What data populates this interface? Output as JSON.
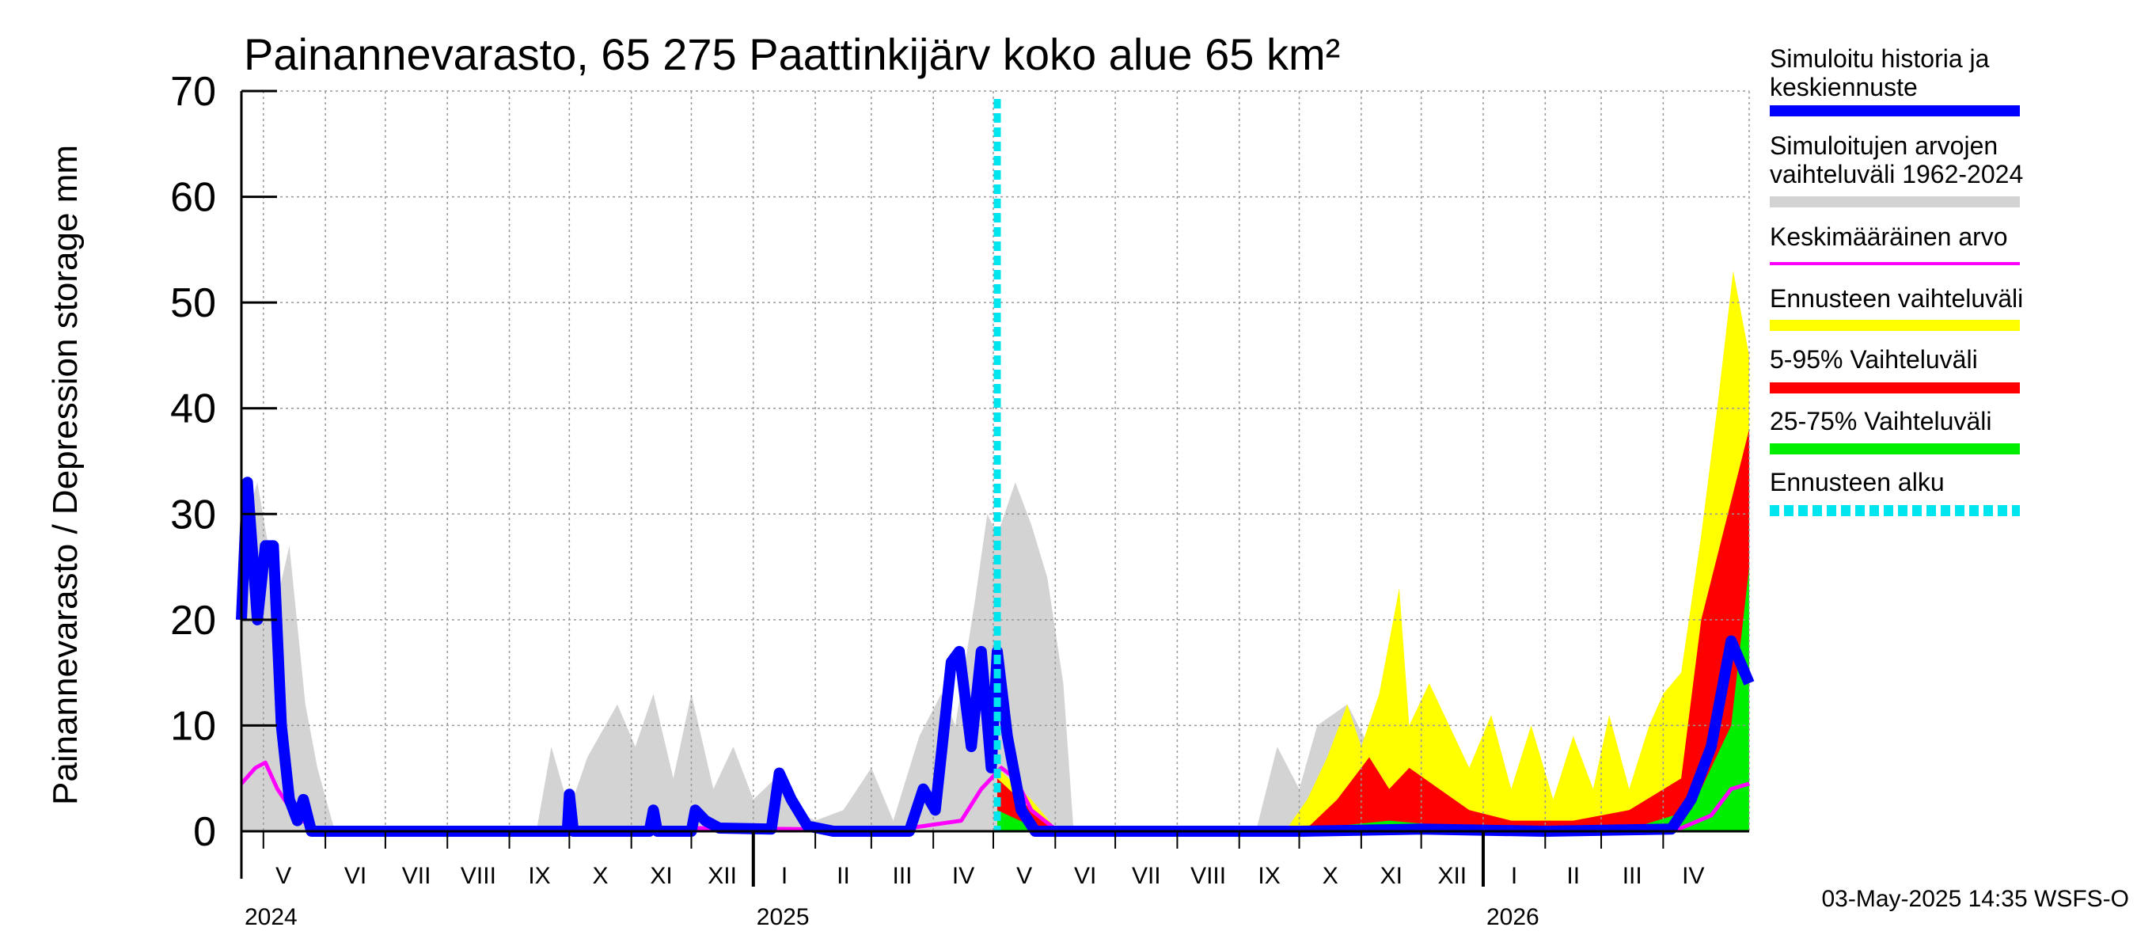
{
  "chart_data": {
    "type": "area",
    "title": "Painannevarasto, 65 275 Paattinkijärv koko alue 65 km²",
    "ylabel": "Painannevarasto / Depression storage    mm",
    "ylim": [
      0,
      70
    ],
    "yticks": [
      0,
      10,
      20,
      30,
      40,
      50,
      60,
      70
    ],
    "x_range": [
      "2024-04-20",
      "2026-05-14"
    ],
    "grid": true,
    "legend_position": "right",
    "months": [
      {
        "label": "V",
        "date": "2024-05-01"
      },
      {
        "label": "VI",
        "date": "2024-06-01"
      },
      {
        "label": "VII",
        "date": "2024-07-01"
      },
      {
        "label": "VIII",
        "date": "2024-08-01"
      },
      {
        "label": "IX",
        "date": "2024-09-01"
      },
      {
        "label": "X",
        "date": "2024-10-01"
      },
      {
        "label": "XI",
        "date": "2024-11-01"
      },
      {
        "label": "XII",
        "date": "2024-12-01"
      },
      {
        "label": "I",
        "date": "2025-01-01"
      },
      {
        "label": "II",
        "date": "2025-02-01"
      },
      {
        "label": "III",
        "date": "2025-03-01"
      },
      {
        "label": "IV",
        "date": "2025-04-01"
      },
      {
        "label": "V",
        "date": "2025-05-01"
      },
      {
        "label": "VI",
        "date": "2025-06-01"
      },
      {
        "label": "VII",
        "date": "2025-07-01"
      },
      {
        "label": "VIII",
        "date": "2025-08-01"
      },
      {
        "label": "IX",
        "date": "2025-09-01"
      },
      {
        "label": "X",
        "date": "2025-10-01"
      },
      {
        "label": "XI",
        "date": "2025-11-01"
      },
      {
        "label": "XII",
        "date": "2025-12-01"
      },
      {
        "label": "I",
        "date": "2026-01-01"
      },
      {
        "label": "II",
        "date": "2026-02-01"
      },
      {
        "label": "III",
        "date": "2026-03-01"
      },
      {
        "label": "IV",
        "date": "2026-04-01"
      }
    ],
    "years": [
      {
        "label": "2024",
        "date": "2024-05-01"
      },
      {
        "label": "2025",
        "date": "2025-01-01"
      },
      {
        "label": "2026",
        "date": "2026-01-01"
      }
    ],
    "forecast_start": "2025-05-03",
    "series": [
      {
        "name": "Simuloitujen arvojen vaihteluväli 1962-2024",
        "color": "#d3d3d3",
        "kind": "band",
        "points": [
          [
            "2024-04-20",
            0,
            28
          ],
          [
            "2024-04-28",
            0,
            33
          ],
          [
            "2024-05-08",
            0,
            22
          ],
          [
            "2024-05-14",
            0,
            27
          ],
          [
            "2024-05-22",
            0,
            12
          ],
          [
            "2024-05-28",
            0,
            6
          ],
          [
            "2024-06-05",
            0,
            0.5
          ],
          [
            "2024-09-15",
            0,
            0.5
          ],
          [
            "2024-09-22",
            0,
            8
          ],
          [
            "2024-10-01",
            0,
            2
          ],
          [
            "2024-10-10",
            0,
            7
          ],
          [
            "2024-10-25",
            0,
            12
          ],
          [
            "2024-11-03",
            0,
            8
          ],
          [
            "2024-11-12",
            0,
            13
          ],
          [
            "2024-11-22",
            0,
            5
          ],
          [
            "2024-12-01",
            0,
            13
          ],
          [
            "2024-12-12",
            0,
            4
          ],
          [
            "2024-12-22",
            0,
            8
          ],
          [
            "2025-01-01",
            0,
            3
          ],
          [
            "2025-01-12",
            0,
            5
          ],
          [
            "2025-01-22",
            0,
            2
          ],
          [
            "2025-02-01",
            0,
            1
          ],
          [
            "2025-02-15",
            0,
            2
          ],
          [
            "2025-03-01",
            0,
            6
          ],
          [
            "2025-03-12",
            0,
            1
          ],
          [
            "2025-03-25",
            0,
            9
          ],
          [
            "2025-04-05",
            0,
            13
          ],
          [
            "2025-04-12",
            0,
            10
          ],
          [
            "2025-04-22",
            0,
            22
          ],
          [
            "2025-04-28",
            0,
            30
          ],
          [
            "2025-05-03",
            0,
            28
          ],
          [
            "2025-05-12",
            0,
            33
          ],
          [
            "2025-05-20",
            0,
            29
          ],
          [
            "2025-05-28",
            0,
            24
          ],
          [
            "2025-06-05",
            0,
            14
          ],
          [
            "2025-06-10",
            0,
            0.5
          ],
          [
            "2025-09-10",
            0,
            0.5
          ],
          [
            "2025-09-20",
            0,
            8
          ],
          [
            "2025-10-01",
            0,
            4
          ],
          [
            "2025-10-10",
            0,
            10
          ],
          [
            "2025-10-25",
            0,
            12
          ],
          [
            "2025-11-05",
            0,
            8
          ],
          [
            "2025-11-15",
            0,
            13
          ],
          [
            "2025-11-28",
            0,
            5
          ],
          [
            "2025-12-10",
            0,
            9
          ],
          [
            "2025-12-22",
            0,
            3
          ],
          [
            "2026-01-15",
            0,
            1
          ],
          [
            "2026-02-15",
            0,
            0.5
          ],
          [
            "2026-03-15",
            0,
            1
          ],
          [
            "2026-04-10",
            0,
            8
          ],
          [
            "2026-04-20",
            0,
            18
          ],
          [
            "2026-04-30",
            0,
            30
          ],
          [
            "2026-05-08",
            0,
            25
          ],
          [
            "2026-05-14",
            0,
            20
          ]
        ]
      },
      {
        "name": "Ennusteen vaihteluväli",
        "color": "#ffff00",
        "kind": "band",
        "points": [
          [
            "2025-05-03",
            0,
            6
          ],
          [
            "2025-05-20",
            0,
            3
          ],
          [
            "2025-06-01",
            0,
            0.3
          ],
          [
            "2025-09-25",
            0,
            0.3
          ],
          [
            "2025-10-05",
            0,
            3
          ],
          [
            "2025-10-15",
            0,
            7
          ],
          [
            "2025-10-25",
            0,
            12
          ],
          [
            "2025-11-01",
            0,
            8
          ],
          [
            "2025-11-10",
            0,
            13
          ],
          [
            "2025-11-20",
            0,
            23
          ],
          [
            "2025-11-25",
            0,
            10
          ],
          [
            "2025-12-05",
            0,
            14
          ],
          [
            "2025-12-15",
            0,
            10
          ],
          [
            "2025-12-25",
            0,
            6
          ],
          [
            "2026-01-05",
            0,
            11
          ],
          [
            "2026-01-15",
            0,
            4
          ],
          [
            "2026-01-25",
            0,
            10
          ],
          [
            "2026-02-05",
            0,
            3
          ],
          [
            "2026-02-15",
            0,
            9
          ],
          [
            "2026-02-25",
            0,
            4
          ],
          [
            "2026-03-05",
            0,
            11
          ],
          [
            "2026-03-15",
            0,
            4
          ],
          [
            "2026-03-25",
            0,
            10
          ],
          [
            "2026-04-01",
            0,
            13
          ],
          [
            "2026-04-10",
            0,
            15
          ],
          [
            "2026-04-20",
            0,
            28
          ],
          [
            "2026-04-28",
            0,
            40
          ],
          [
            "2026-05-06",
            0,
            53
          ],
          [
            "2026-05-14",
            0,
            45
          ]
        ]
      },
      {
        "name": "5-95% Vaihteluväli",
        "color": "#ff0000",
        "kind": "band",
        "points": [
          [
            "2025-05-03",
            0,
            5
          ],
          [
            "2025-05-20",
            0,
            2
          ],
          [
            "2025-06-01",
            0,
            0.2
          ],
          [
            "2025-10-05",
            0,
            0.3
          ],
          [
            "2025-10-20",
            0,
            3
          ],
          [
            "2025-11-05",
            0,
            7
          ],
          [
            "2025-11-15",
            0,
            4
          ],
          [
            "2025-11-25",
            0,
            6
          ],
          [
            "2025-12-10",
            0,
            4
          ],
          [
            "2025-12-25",
            0,
            2
          ],
          [
            "2026-01-15",
            0,
            1
          ],
          [
            "2026-02-15",
            0,
            1
          ],
          [
            "2026-03-15",
            0,
            2
          ],
          [
            "2026-04-10",
            0,
            5
          ],
          [
            "2026-04-20",
            0,
            20
          ],
          [
            "2026-04-28",
            0,
            26
          ],
          [
            "2026-05-06",
            0,
            32
          ],
          [
            "2026-05-14",
            0,
            38
          ]
        ]
      },
      {
        "name": "25-75% Vaihteluväli",
        "color": "#00ee00",
        "kind": "band",
        "points": [
          [
            "2025-05-03",
            0,
            2
          ],
          [
            "2025-05-20",
            0,
            0.5
          ],
          [
            "2025-06-01",
            0,
            0.1
          ],
          [
            "2025-10-05",
            0,
            0.1
          ],
          [
            "2025-10-25",
            0,
            0.6
          ],
          [
            "2025-11-15",
            0,
            1
          ],
          [
            "2025-12-15",
            0,
            0.5
          ],
          [
            "2026-01-15",
            0,
            0.2
          ],
          [
            "2026-03-15",
            0,
            0.2
          ],
          [
            "2026-04-15",
            0,
            2
          ],
          [
            "2026-04-25",
            0,
            6
          ],
          [
            "2026-05-05",
            0,
            10
          ],
          [
            "2026-05-14",
            0,
            25
          ]
        ]
      },
      {
        "name": "Keskimääräinen arvo",
        "color": "#ff00ff",
        "kind": "line",
        "points": [
          [
            "2024-04-20",
            4.5
          ],
          [
            "2024-04-27",
            6
          ],
          [
            "2024-05-02",
            6.5
          ],
          [
            "2024-05-08",
            4
          ],
          [
            "2024-05-15",
            2
          ],
          [
            "2024-05-25",
            0.3
          ],
          [
            "2024-06-05",
            0.2
          ],
          [
            "2024-10-01",
            0.2
          ],
          [
            "2024-12-01",
            0.3
          ],
          [
            "2025-02-01",
            0.2
          ],
          [
            "2025-03-20",
            0.3
          ],
          [
            "2025-04-15",
            1
          ],
          [
            "2025-04-25",
            4
          ],
          [
            "2025-05-05",
            6
          ],
          [
            "2025-05-12",
            5
          ],
          [
            "2025-05-20",
            2
          ],
          [
            "2025-06-01",
            0.2
          ],
          [
            "2025-10-01",
            0.2
          ],
          [
            "2025-12-01",
            0.3
          ],
          [
            "2026-02-01",
            0.2
          ],
          [
            "2026-04-10",
            0.3
          ],
          [
            "2026-04-25",
            1.5
          ],
          [
            "2026-05-05",
            4
          ],
          [
            "2026-05-14",
            4.5
          ]
        ]
      },
      {
        "name": "Simuloitu historia ja keskiennuste",
        "color": "#0000ff",
        "kind": "line",
        "points": [
          [
            "2024-04-20",
            20
          ],
          [
            "2024-04-23",
            33
          ],
          [
            "2024-04-28",
            20
          ],
          [
            "2024-05-02",
            27
          ],
          [
            "2024-05-06",
            27
          ],
          [
            "2024-05-10",
            10
          ],
          [
            "2024-05-14",
            3
          ],
          [
            "2024-05-18",
            1
          ],
          [
            "2024-05-21",
            3
          ],
          [
            "2024-05-25",
            0
          ],
          [
            "2024-09-30",
            0
          ],
          [
            "2024-10-01",
            3.5
          ],
          [
            "2024-10-03",
            0
          ],
          [
            "2024-11-10",
            0
          ],
          [
            "2024-11-12",
            2
          ],
          [
            "2024-11-14",
            0
          ],
          [
            "2024-12-01",
            0
          ],
          [
            "2024-12-03",
            2
          ],
          [
            "2024-12-08",
            1
          ],
          [
            "2024-12-15",
            0.3
          ],
          [
            "2025-01-10",
            0.2
          ],
          [
            "2025-01-14",
            5.5
          ],
          [
            "2025-01-20",
            3
          ],
          [
            "2025-01-28",
            0.5
          ],
          [
            "2025-02-10",
            0
          ],
          [
            "2025-03-20",
            0
          ],
          [
            "2025-03-27",
            4
          ],
          [
            "2025-04-02",
            2
          ],
          [
            "2025-04-10",
            16
          ],
          [
            "2025-04-14",
            17
          ],
          [
            "2025-04-20",
            8
          ],
          [
            "2025-04-25",
            17
          ],
          [
            "2025-04-30",
            6
          ],
          [
            "2025-05-03",
            17
          ],
          [
            "2025-05-08",
            9
          ],
          [
            "2025-05-15",
            2
          ],
          [
            "2025-05-22",
            0
          ],
          [
            "2025-10-01",
            0
          ],
          [
            "2025-12-01",
            0.2
          ],
          [
            "2026-02-01",
            0
          ],
          [
            "2026-04-05",
            0.2
          ],
          [
            "2026-04-15",
            3
          ],
          [
            "2026-04-25",
            8
          ],
          [
            "2026-05-05",
            18
          ],
          [
            "2026-05-14",
            14
          ]
        ]
      },
      {
        "name": "Ennusteen alku",
        "color": "#00e5ee",
        "kind": "marker-line"
      }
    ]
  },
  "footer": "03-May-2025 14:35 WSFS-O"
}
